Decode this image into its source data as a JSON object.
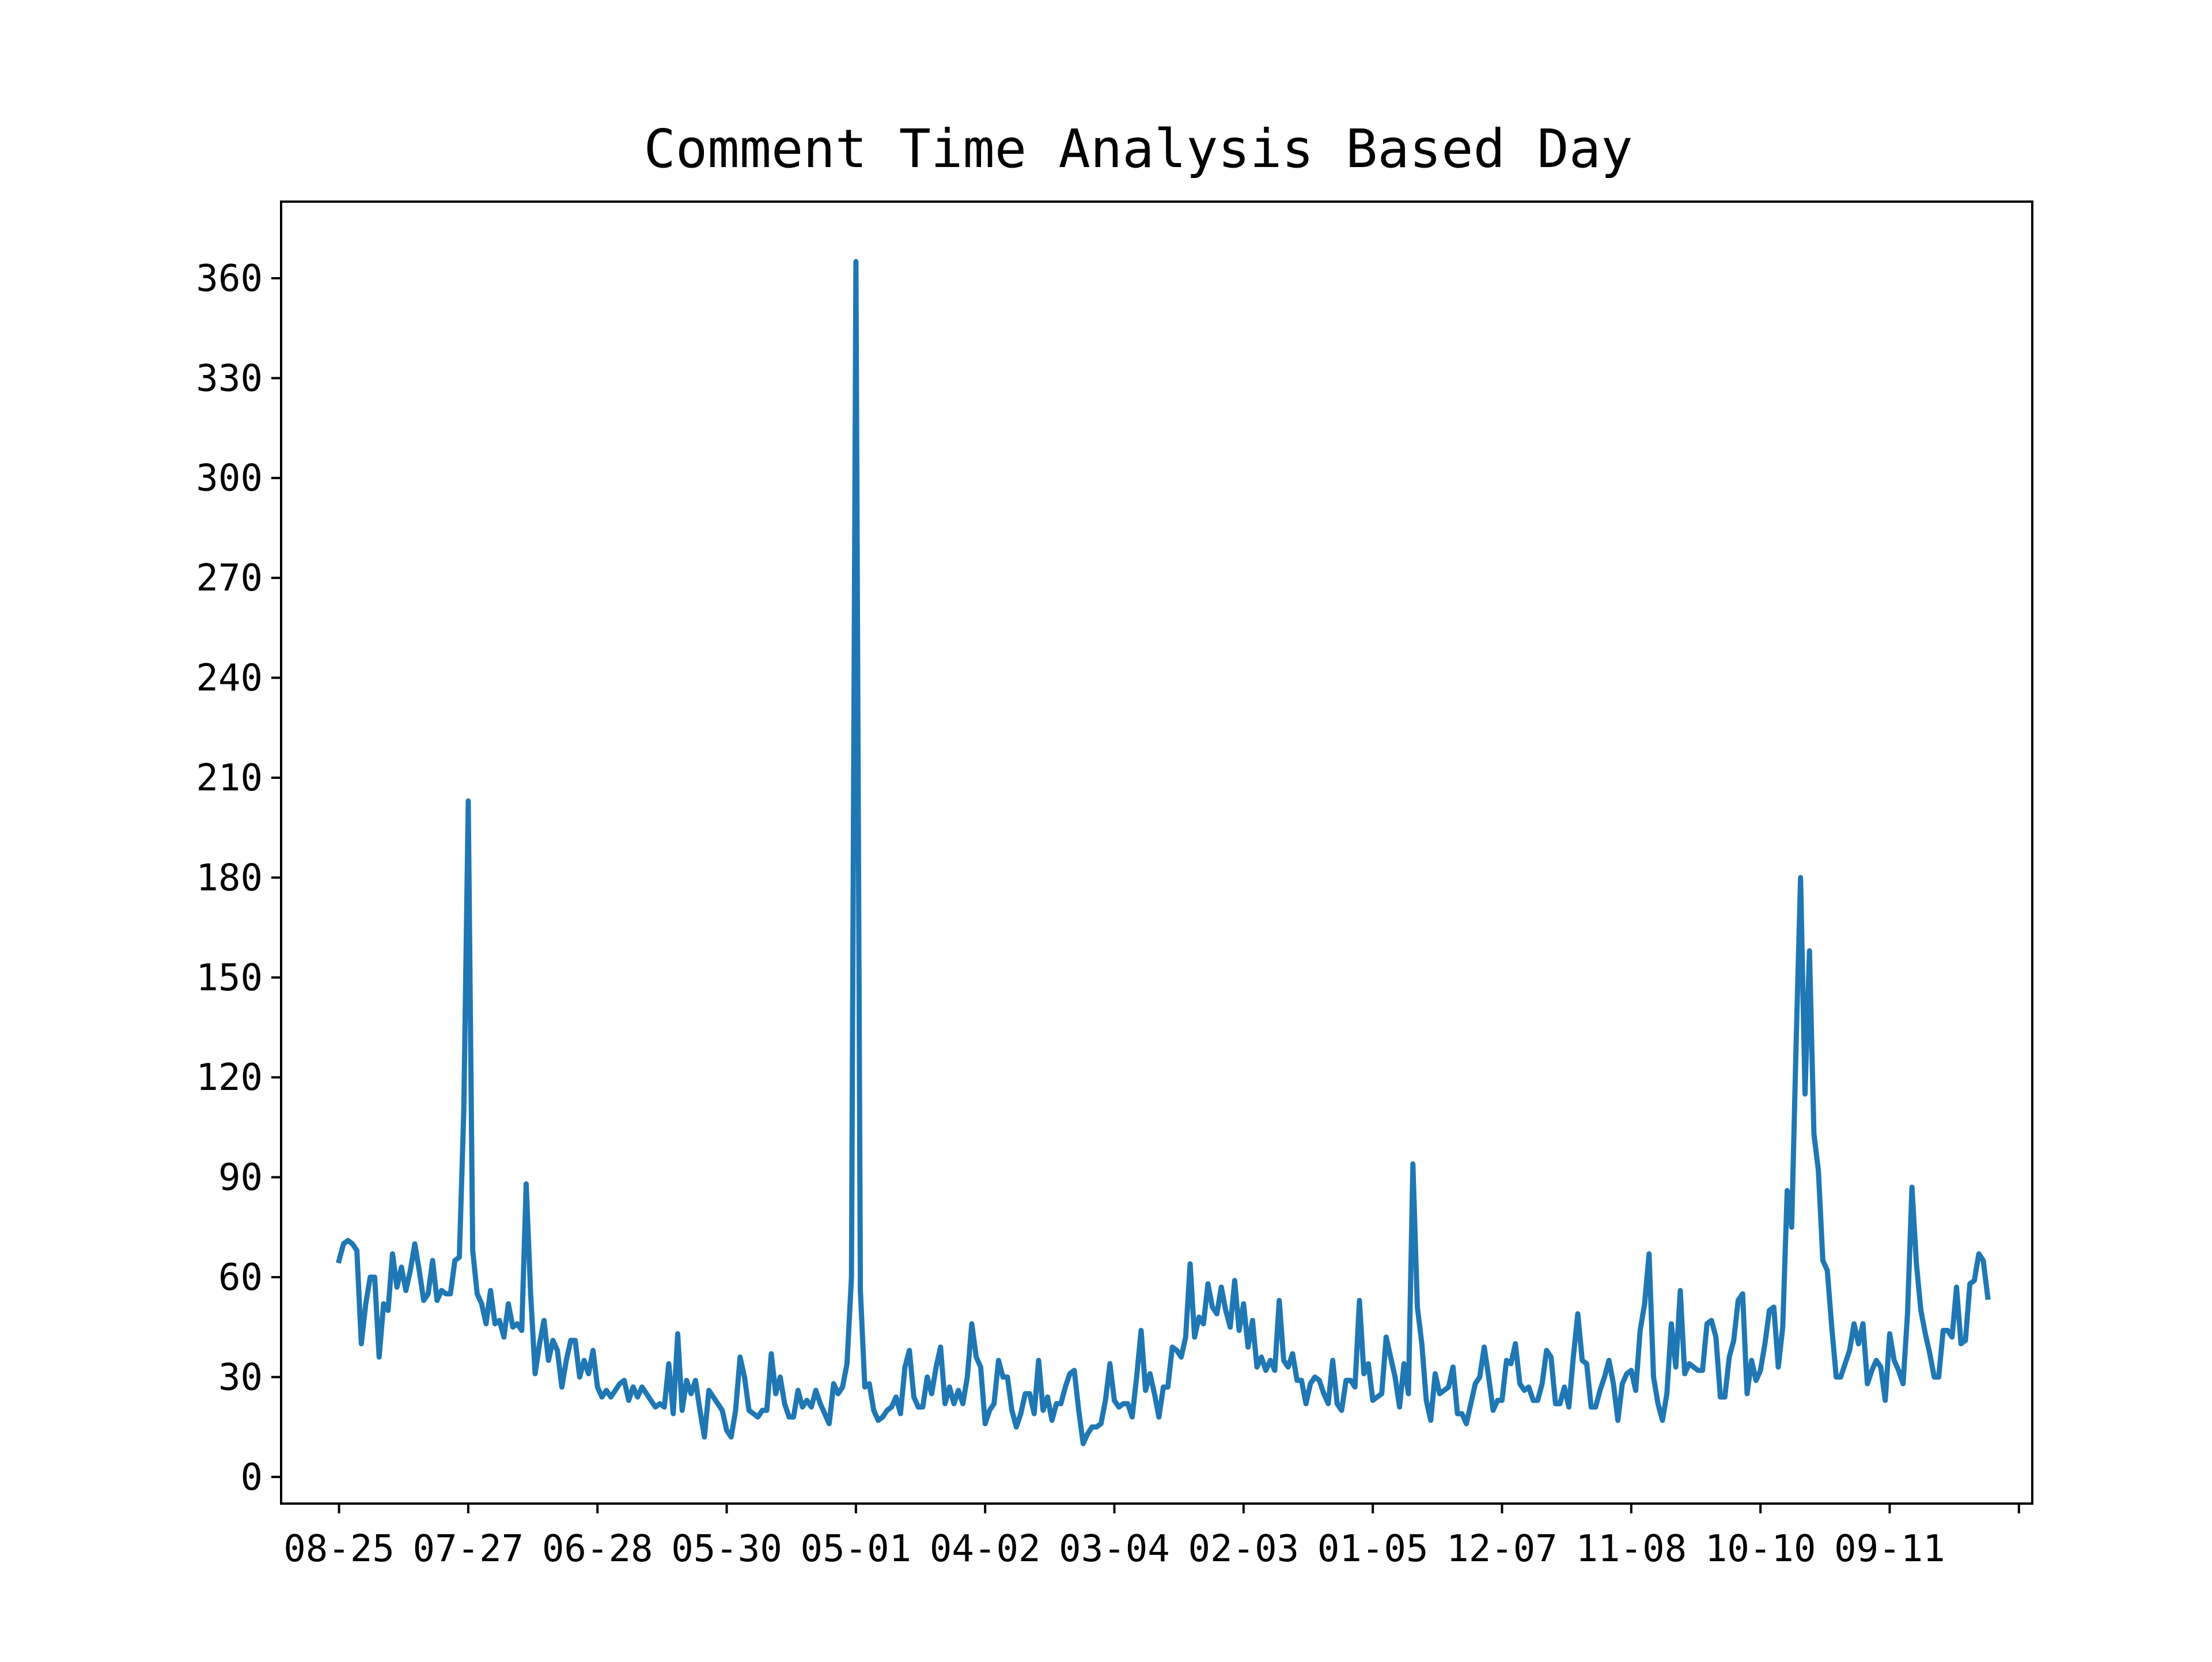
{
  "chart_data": {
    "type": "line",
    "title": "Comment Time Analysis Based Day",
    "xlabel": "",
    "ylabel": "",
    "x_tick_labels": [
      "08-25",
      "07-27",
      "06-28",
      "05-30",
      "05-01",
      "04-02",
      "03-04",
      "02-03",
      "01-05",
      "12-07",
      "11-08",
      "10-10",
      "09-11"
    ],
    "x_tick_step_days": 29,
    "x_range_days": [
      -13,
      380
    ],
    "yticks": [
      0,
      30,
      60,
      90,
      120,
      150,
      180,
      210,
      240,
      270,
      300,
      330,
      360
    ],
    "ylim": [
      -8,
      383
    ],
    "grid": false,
    "legend": "none",
    "color": "#1f77b4",
    "series": [
      {
        "values": [
          65,
          70,
          71,
          70,
          68,
          40,
          52,
          60,
          60,
          36,
          52,
          50,
          67,
          57,
          63,
          56,
          62,
          70,
          62,
          53,
          55,
          65,
          53,
          56,
          55,
          55,
          65,
          66,
          110,
          203,
          68,
          55,
          52,
          46,
          56,
          46,
          47,
          42,
          52,
          45,
          46,
          44,
          88,
          55,
          31,
          40,
          47,
          35,
          41,
          38,
          27,
          35,
          41,
          41,
          30,
          35,
          31,
          38,
          27,
          24,
          26,
          24,
          26,
          28,
          29,
          23,
          27,
          24,
          27,
          25,
          23,
          21,
          22,
          21,
          34,
          19,
          43,
          20,
          29,
          25,
          29,
          20,
          12,
          26,
          24,
          22,
          20,
          14,
          12,
          20,
          36,
          30,
          20,
          19,
          18,
          20,
          20,
          37,
          25,
          30,
          22,
          18,
          18,
          26,
          21,
          23,
          21,
          26,
          22,
          19,
          16,
          28,
          25,
          27,
          34,
          60,
          365,
          56,
          27,
          28,
          20,
          17,
          18,
          20,
          21,
          24,
          19,
          33,
          38,
          24,
          21,
          21,
          30,
          25,
          33,
          39,
          22,
          27,
          22,
          26,
          22,
          30,
          46,
          36,
          33,
          16,
          20,
          22,
          35,
          30,
          30,
          20,
          15,
          19,
          25,
          25,
          19,
          35,
          20,
          24,
          17,
          22,
          22,
          27,
          31,
          32,
          20,
          10,
          13,
          15,
          15,
          16,
          23,
          34,
          23,
          21,
          22,
          22,
          18,
          30,
          44,
          26,
          31,
          25,
          18,
          27,
          27,
          39,
          38,
          36,
          42,
          64,
          42,
          48,
          46,
          58,
          51,
          49,
          57,
          50,
          45,
          59,
          44,
          52,
          39,
          47,
          33,
          36,
          32,
          35,
          32,
          53,
          35,
          33,
          37,
          29,
          29,
          22,
          28,
          30,
          29,
          25,
          22,
          35,
          22,
          20,
          29,
          29,
          27,
          53,
          31,
          34,
          23,
          24,
          25,
          42,
          36,
          30,
          21,
          34,
          25,
          94,
          51,
          40,
          23,
          17,
          31,
          25,
          26,
          27,
          33,
          19,
          19,
          16,
          22,
          28,
          30,
          39,
          30,
          20,
          23,
          23,
          35,
          34,
          40,
          28,
          26,
          27,
          23,
          23,
          28,
          38,
          36,
          22,
          22,
          27,
          21,
          36,
          49,
          35,
          34,
          21,
          21,
          26,
          30,
          35,
          28,
          17,
          28,
          31,
          32,
          26,
          44,
          52,
          67,
          30,
          22,
          17,
          25,
          46,
          33,
          56,
          31,
          34,
          33,
          32,
          32,
          46,
          47,
          42,
          24,
          24,
          36,
          41,
          53,
          55,
          25,
          35,
          29,
          32,
          40,
          50,
          51,
          33,
          45,
          86,
          75,
          130,
          180,
          115,
          158,
          103,
          92,
          65,
          62,
          45,
          30,
          30,
          34,
          38,
          46,
          40,
          46,
          28,
          32,
          35,
          33,
          23,
          43,
          35,
          32,
          28,
          49,
          87,
          64,
          50,
          43,
          37,
          30,
          30,
          44,
          44,
          42,
          57,
          40,
          41,
          58,
          59,
          67,
          65,
          54
        ]
      }
    ]
  }
}
